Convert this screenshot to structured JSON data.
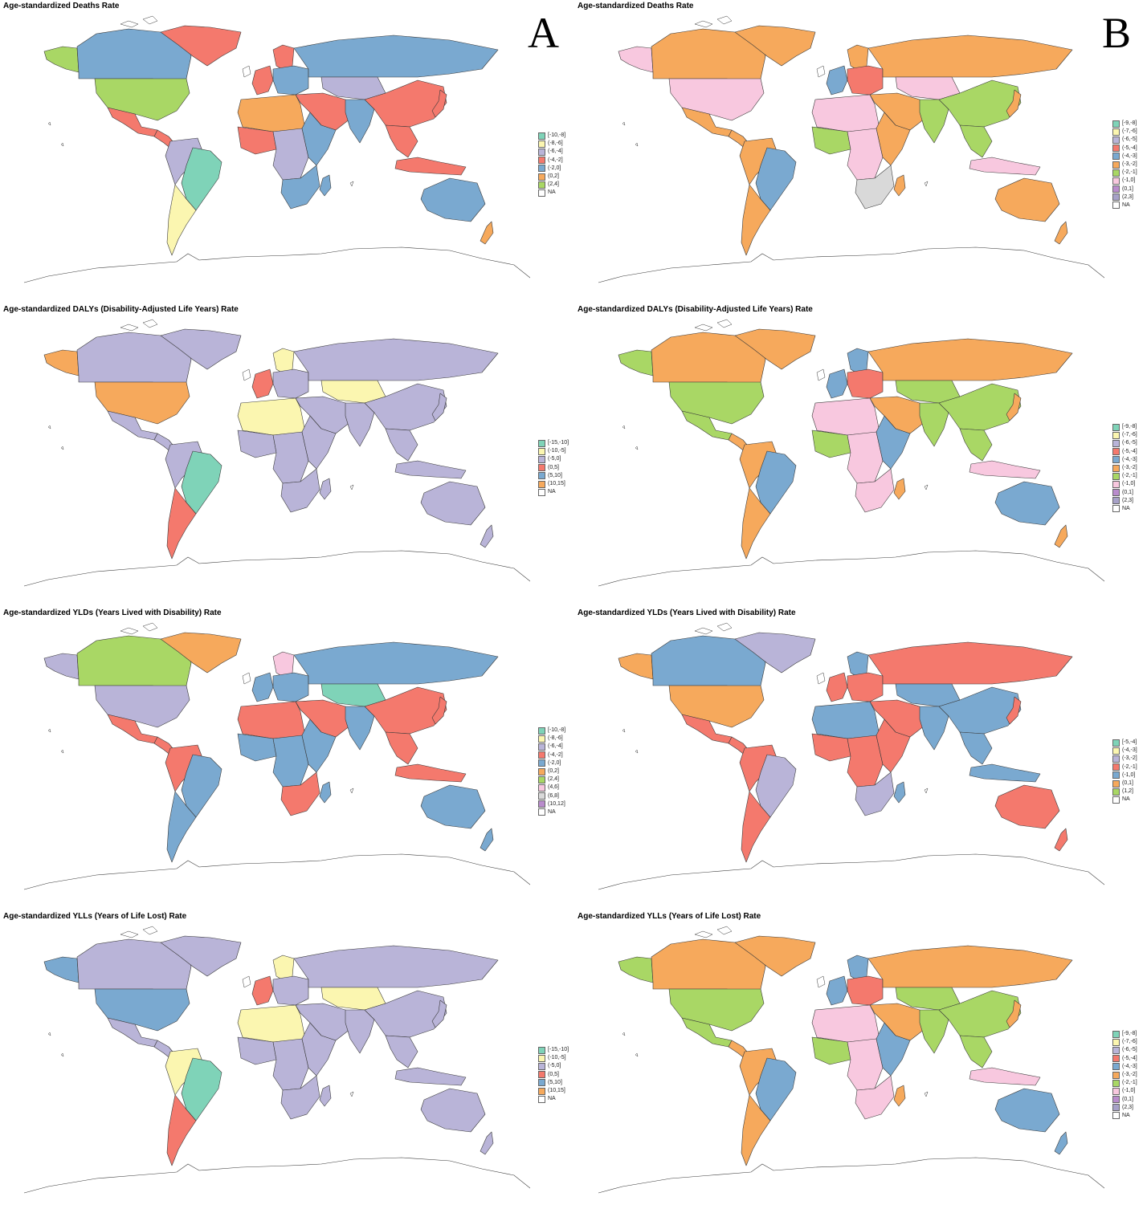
{
  "panels": [
    {
      "letter": "A"
    },
    {
      "letter": "B"
    }
  ],
  "maps": [
    {
      "id": "A1",
      "title": "Age-standardized Deaths Rate",
      "legend": [
        {
          "label": "[-10,-8]",
          "color": "#7fd3b8"
        },
        {
          "label": "(-8,-6]",
          "color": "#fbf6b0"
        },
        {
          "label": "(-6,-4]",
          "color": "#b9b4d8"
        },
        {
          "label": "(-4,-2]",
          "color": "#f4796d"
        },
        {
          "label": "(-2,0]",
          "color": "#7aa9d0"
        },
        {
          "label": "(0,2]",
          "color": "#f6a95c"
        },
        {
          "label": "(2,4]",
          "color": "#a9d765"
        },
        {
          "label": "NA",
          "color": "#ffffff"
        }
      ],
      "regions": {
        "alaska": "#a9d765",
        "canada": "#7aa9d0",
        "usa": "#a9d765",
        "mexico": "#f4796d",
        "central_america": "#f4796d",
        "greenland": "#f4796d",
        "south_america_north": "#b9b4d8",
        "brazil": "#7fd3b8",
        "south_america_south": "#fbf6b0",
        "western_europe": "#f4796d",
        "scandinavia": "#f4796d",
        "eastern_europe": "#7aa9d0",
        "russia": "#7aa9d0",
        "central_asia": "#b9b4d8",
        "middle_east": "#f4796d",
        "north_africa": "#f6a95c",
        "west_africa": "#f4796d",
        "central_africa": "#b9b4d8",
        "east_africa": "#7aa9d0",
        "southern_africa": "#7aa9d0",
        "madagascar": "#7aa9d0",
        "india": "#7aa9d0",
        "china": "#f4796d",
        "southeast_asia": "#f4796d",
        "japan": "#f4796d",
        "indonesia": "#f4796d",
        "australia": "#7aa9d0",
        "new_zealand": "#f6a95c"
      }
    },
    {
      "id": "B1",
      "title": "Age-standardized Deaths Rate",
      "legend": [
        {
          "label": "[-9,-8]",
          "color": "#7fd3b8"
        },
        {
          "label": "(-7,-6]",
          "color": "#fbf6b0"
        },
        {
          "label": "(-6,-5]",
          "color": "#b9b4d8"
        },
        {
          "label": "(-5,-4]",
          "color": "#f4796d"
        },
        {
          "label": "(-4,-3]",
          "color": "#7aa9d0"
        },
        {
          "label": "(-3,-2]",
          "color": "#f6a95c"
        },
        {
          "label": "(-2,-1]",
          "color": "#a9d765"
        },
        {
          "label": "(-1,0]",
          "color": "#f8c8df"
        },
        {
          "label": "(0,1]",
          "color": "#b98ccc"
        },
        {
          "label": "(2,3]",
          "color": "#a7a1c8"
        },
        {
          "label": "NA",
          "color": "#ffffff"
        }
      ],
      "regions": {
        "alaska": "#f8c8df",
        "canada": "#f6a95c",
        "usa": "#f8c8df",
        "mexico": "#f6a95c",
        "central_america": "#f6a95c",
        "greenland": "#f6a95c",
        "south_america_north": "#f6a95c",
        "brazil": "#7aa9d0",
        "south_america_south": "#f6a95c",
        "western_europe": "#7aa9d0",
        "scandinavia": "#f6a95c",
        "eastern_europe": "#f4796d",
        "russia": "#f6a95c",
        "central_asia": "#f8c8df",
        "middle_east": "#f6a95c",
        "north_africa": "#f8c8df",
        "west_africa": "#a9d765",
        "central_africa": "#f8c8df",
        "east_africa": "#f6a95c",
        "southern_africa": "#d9d9d9",
        "madagascar": "#f6a95c",
        "india": "#a9d765",
        "china": "#a9d765",
        "southeast_asia": "#a9d765",
        "japan": "#f6a95c",
        "indonesia": "#f8c8df",
        "australia": "#f6a95c",
        "new_zealand": "#f6a95c"
      }
    },
    {
      "id": "A2",
      "title": "Age-standardized DALYs (Disability-Adjusted Life Years) Rate",
      "legend": [
        {
          "label": "[-15,-10]",
          "color": "#7fd3b8"
        },
        {
          "label": "(-10,-5]",
          "color": "#fbf6b0"
        },
        {
          "label": "(-5,0]",
          "color": "#b9b4d8"
        },
        {
          "label": "(0,5]",
          "color": "#f4796d"
        },
        {
          "label": "(5,10]",
          "color": "#7aa9d0"
        },
        {
          "label": "(10,15]",
          "color": "#f6a95c"
        },
        {
          "label": "NA",
          "color": "#ffffff"
        }
      ],
      "regions": {
        "alaska": "#f6a95c",
        "canada": "#b9b4d8",
        "usa": "#f6a95c",
        "mexico": "#b9b4d8",
        "central_america": "#b9b4d8",
        "greenland": "#b9b4d8",
        "south_america_north": "#b9b4d8",
        "brazil": "#7fd3b8",
        "south_america_south": "#f4796d",
        "western_europe": "#f4796d",
        "scandinavia": "#fbf6b0",
        "eastern_europe": "#b9b4d8",
        "russia": "#b9b4d8",
        "central_asia": "#fbf6b0",
        "middle_east": "#b9b4d8",
        "north_africa": "#fbf6b0",
        "west_africa": "#b9b4d8",
        "central_africa": "#b9b4d8",
        "east_africa": "#b9b4d8",
        "southern_africa": "#b9b4d8",
        "madagascar": "#b9b4d8",
        "india": "#b9b4d8",
        "china": "#b9b4d8",
        "southeast_asia": "#b9b4d8",
        "japan": "#b9b4d8",
        "indonesia": "#b9b4d8",
        "australia": "#b9b4d8",
        "new_zealand": "#b9b4d8"
      }
    },
    {
      "id": "B2",
      "title": "Age-standardized DALYs (Disability-Adjusted Life Years) Rate",
      "legend": [
        {
          "label": "[-9,-8]",
          "color": "#7fd3b8"
        },
        {
          "label": "(-7,-6]",
          "color": "#fbf6b0"
        },
        {
          "label": "(-6,-5]",
          "color": "#b9b4d8"
        },
        {
          "label": "(-5,-4]",
          "color": "#f4796d"
        },
        {
          "label": "(-4,-3]",
          "color": "#7aa9d0"
        },
        {
          "label": "(-3,-2]",
          "color": "#f6a95c"
        },
        {
          "label": "(-2,-1]",
          "color": "#a9d765"
        },
        {
          "label": "(-1,0]",
          "color": "#f8c8df"
        },
        {
          "label": "(0,1]",
          "color": "#b98ccc"
        },
        {
          "label": "(2,3]",
          "color": "#a7a1c8"
        },
        {
          "label": "NA",
          "color": "#ffffff"
        }
      ],
      "regions": {
        "alaska": "#a9d765",
        "canada": "#f6a95c",
        "usa": "#a9d765",
        "mexico": "#a9d765",
        "central_america": "#f6a95c",
        "greenland": "#f6a95c",
        "south_america_north": "#f6a95c",
        "brazil": "#7aa9d0",
        "south_america_south": "#f6a95c",
        "western_europe": "#7aa9d0",
        "scandinavia": "#7aa9d0",
        "eastern_europe": "#f4796d",
        "russia": "#f6a95c",
        "central_asia": "#a9d765",
        "middle_east": "#f6a95c",
        "north_africa": "#f8c8df",
        "west_africa": "#a9d765",
        "central_africa": "#f8c8df",
        "east_africa": "#7aa9d0",
        "southern_africa": "#f8c8df",
        "madagascar": "#f6a95c",
        "india": "#a9d765",
        "china": "#a9d765",
        "southeast_asia": "#a9d765",
        "japan": "#f6a95c",
        "indonesia": "#f8c8df",
        "australia": "#7aa9d0",
        "new_zealand": "#f6a95c"
      }
    },
    {
      "id": "A3",
      "title": "Age-standardized YLDs (Years Lived with Disability) Rate",
      "legend": [
        {
          "label": "[-10,-8]",
          "color": "#7fd3b8"
        },
        {
          "label": "(-8,-6]",
          "color": "#fbf6b0"
        },
        {
          "label": "(-6,-4]",
          "color": "#b9b4d8"
        },
        {
          "label": "(-4,-2]",
          "color": "#f4796d"
        },
        {
          "label": "(-2,0]",
          "color": "#7aa9d0"
        },
        {
          "label": "(0,2]",
          "color": "#f6a95c"
        },
        {
          "label": "(2,4]",
          "color": "#a9d765"
        },
        {
          "label": "(4,6]",
          "color": "#f8c8df"
        },
        {
          "label": "(6,8]",
          "color": "#d9d9d9"
        },
        {
          "label": "(10,12]",
          "color": "#b98ccc"
        },
        {
          "label": "NA",
          "color": "#ffffff"
        }
      ],
      "regions": {
        "alaska": "#b9b4d8",
        "canada": "#a9d765",
        "usa": "#b9b4d8",
        "mexico": "#f4796d",
        "central_america": "#f4796d",
        "greenland": "#f6a95c",
        "south_america_north": "#f4796d",
        "brazil": "#7aa9d0",
        "south_america_south": "#7aa9d0",
        "western_europe": "#7aa9d0",
        "scandinavia": "#f8c8df",
        "eastern_europe": "#7aa9d0",
        "russia": "#7aa9d0",
        "central_asia": "#7fd3b8",
        "middle_east": "#f4796d",
        "north_africa": "#f4796d",
        "west_africa": "#7aa9d0",
        "central_africa": "#7aa9d0",
        "east_africa": "#7aa9d0",
        "southern_africa": "#f4796d",
        "madagascar": "#7aa9d0",
        "india": "#7aa9d0",
        "china": "#f4796d",
        "southeast_asia": "#f4796d",
        "japan": "#f4796d",
        "indonesia": "#f4796d",
        "australia": "#7aa9d0",
        "new_zealand": "#7aa9d0"
      }
    },
    {
      "id": "B3",
      "title": "Age-standardized YLDs (Years Lived with Disability) Rate",
      "legend": [
        {
          "label": "[-5,-4]",
          "color": "#7fd3b8"
        },
        {
          "label": "(-4,-3]",
          "color": "#fbf6b0"
        },
        {
          "label": "(-3,-2]",
          "color": "#b9b4d8"
        },
        {
          "label": "(-2,-1]",
          "color": "#f4796d"
        },
        {
          "label": "(-1,0]",
          "color": "#7aa9d0"
        },
        {
          "label": "(0,1]",
          "color": "#f6a95c"
        },
        {
          "label": "(1,2]",
          "color": "#a9d765"
        },
        {
          "label": "NA",
          "color": "#ffffff"
        }
      ],
      "regions": {
        "alaska": "#f6a95c",
        "canada": "#7aa9d0",
        "usa": "#f6a95c",
        "mexico": "#f4796d",
        "central_america": "#f4796d",
        "greenland": "#b9b4d8",
        "south_america_north": "#f4796d",
        "brazil": "#b9b4d8",
        "south_america_south": "#f4796d",
        "western_europe": "#f4796d",
        "scandinavia": "#7aa9d0",
        "eastern_europe": "#f4796d",
        "russia": "#f4796d",
        "central_asia": "#7aa9d0",
        "middle_east": "#f4796d",
        "north_africa": "#7aa9d0",
        "west_africa": "#f4796d",
        "central_africa": "#f4796d",
        "east_africa": "#f4796d",
        "southern_africa": "#b9b4d8",
        "madagascar": "#7aa9d0",
        "india": "#7aa9d0",
        "china": "#7aa9d0",
        "southeast_asia": "#7aa9d0",
        "japan": "#f4796d",
        "indonesia": "#7aa9d0",
        "australia": "#f4796d",
        "new_zealand": "#f4796d"
      }
    },
    {
      "id": "A4",
      "title": "Age-standardized YLLs (Years of Life Lost) Rate",
      "legend": [
        {
          "label": "[-15,-10]",
          "color": "#7fd3b8"
        },
        {
          "label": "(-10,-5]",
          "color": "#fbf6b0"
        },
        {
          "label": "(-5,0]",
          "color": "#b9b4d8"
        },
        {
          "label": "(0,5]",
          "color": "#f4796d"
        },
        {
          "label": "(5,10]",
          "color": "#7aa9d0"
        },
        {
          "label": "(10,15]",
          "color": "#f6a95c"
        },
        {
          "label": "NA",
          "color": "#ffffff"
        }
      ],
      "regions": {
        "alaska": "#7aa9d0",
        "canada": "#b9b4d8",
        "usa": "#7aa9d0",
        "mexico": "#b9b4d8",
        "central_america": "#b9b4d8",
        "greenland": "#b9b4d8",
        "south_america_north": "#fbf6b0",
        "brazil": "#7fd3b8",
        "south_america_south": "#f4796d",
        "western_europe": "#f4796d",
        "scandinavia": "#fbf6b0",
        "eastern_europe": "#b9b4d8",
        "russia": "#b9b4d8",
        "central_asia": "#fbf6b0",
        "middle_east": "#b9b4d8",
        "north_africa": "#fbf6b0",
        "west_africa": "#b9b4d8",
        "central_africa": "#b9b4d8",
        "east_africa": "#b9b4d8",
        "southern_africa": "#b9b4d8",
        "madagascar": "#b9b4d8",
        "india": "#b9b4d8",
        "china": "#b9b4d8",
        "southeast_asia": "#b9b4d8",
        "japan": "#b9b4d8",
        "indonesia": "#b9b4d8",
        "australia": "#b9b4d8",
        "new_zealand": "#b9b4d8"
      }
    },
    {
      "id": "B4",
      "title": "Age-standardized YLLs (Years of Life Lost) Rate",
      "legend": [
        {
          "label": "[-9,-8]",
          "color": "#7fd3b8"
        },
        {
          "label": "(-7,-6]",
          "color": "#fbf6b0"
        },
        {
          "label": "(-6,-5]",
          "color": "#b9b4d8"
        },
        {
          "label": "(-5,-4]",
          "color": "#f4796d"
        },
        {
          "label": "(-4,-3]",
          "color": "#7aa9d0"
        },
        {
          "label": "(-3,-2]",
          "color": "#f6a95c"
        },
        {
          "label": "(-2,-1]",
          "color": "#a9d765"
        },
        {
          "label": "(-1,0]",
          "color": "#f8c8df"
        },
        {
          "label": "(0,1]",
          "color": "#b98ccc"
        },
        {
          "label": "(2,3]",
          "color": "#a7a1c8"
        },
        {
          "label": "NA",
          "color": "#ffffff"
        }
      ],
      "regions": {
        "alaska": "#a9d765",
        "canada": "#f6a95c",
        "usa": "#a9d765",
        "mexico": "#a9d765",
        "central_america": "#f6a95c",
        "greenland": "#f6a95c",
        "south_america_north": "#f6a95c",
        "brazil": "#7aa9d0",
        "south_america_south": "#f6a95c",
        "western_europe": "#7aa9d0",
        "scandinavia": "#7aa9d0",
        "eastern_europe": "#f4796d",
        "russia": "#f6a95c",
        "central_asia": "#a9d765",
        "middle_east": "#f6a95c",
        "north_africa": "#f8c8df",
        "west_africa": "#a9d765",
        "central_africa": "#f8c8df",
        "east_africa": "#7aa9d0",
        "southern_africa": "#f8c8df",
        "madagascar": "#f6a95c",
        "india": "#a9d765",
        "china": "#a9d765",
        "southeast_asia": "#a9d765",
        "japan": "#f6a95c",
        "indonesia": "#f8c8df",
        "australia": "#7aa9d0",
        "new_zealand": "#7aa9d0"
      }
    }
  ]
}
